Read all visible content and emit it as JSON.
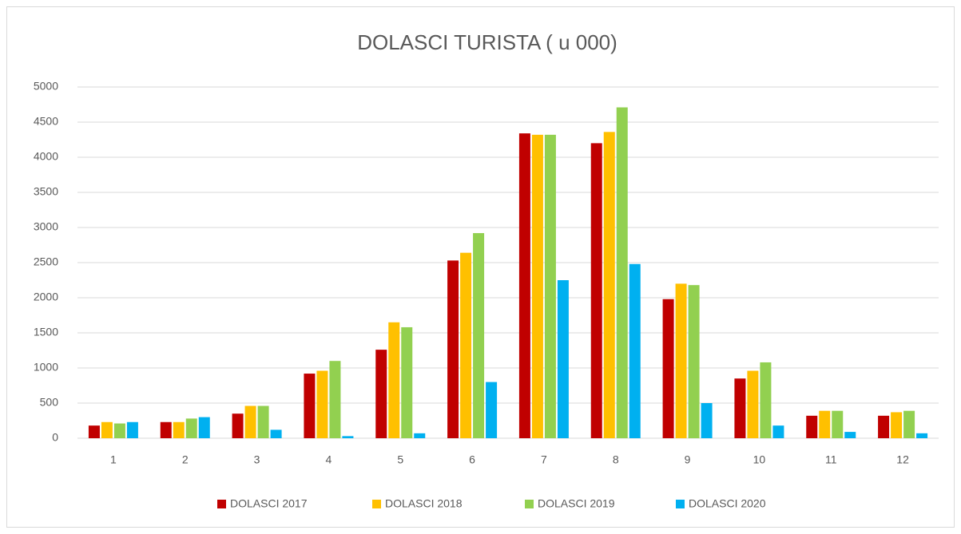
{
  "chart_data": {
    "type": "bar",
    "title": "DOLASCI TURISTA ( u 000)",
    "categories": [
      "1",
      "2",
      "3",
      "4",
      "5",
      "6",
      "7",
      "8",
      "9",
      "10",
      "11",
      "12"
    ],
    "series": [
      {
        "name": "DOLASCI 2017",
        "color": "#c00000",
        "values": [
          180,
          230,
          350,
          920,
          1260,
          2530,
          4340,
          4200,
          1980,
          850,
          320,
          320
        ]
      },
      {
        "name": "DOLASCI 2018",
        "color": "#ffc000",
        "values": [
          230,
          230,
          460,
          960,
          1650,
          2640,
          4320,
          4360,
          2200,
          960,
          390,
          370
        ]
      },
      {
        "name": "DOLASCI 2019",
        "color": "#92d050",
        "values": [
          210,
          280,
          460,
          1100,
          1580,
          2920,
          4320,
          4710,
          2180,
          1080,
          390,
          390
        ]
      },
      {
        "name": "DOLASCI 2020",
        "color": "#00b0f0",
        "values": [
          230,
          300,
          120,
          30,
          70,
          800,
          2250,
          2480,
          500,
          180,
          90,
          70
        ]
      }
    ],
    "ylim": [
      0,
      5000
    ],
    "yticks": [
      0,
      500,
      1000,
      1500,
      2000,
      2500,
      3000,
      3500,
      4000,
      4500,
      5000
    ],
    "grid": true,
    "legend": "bottom"
  }
}
